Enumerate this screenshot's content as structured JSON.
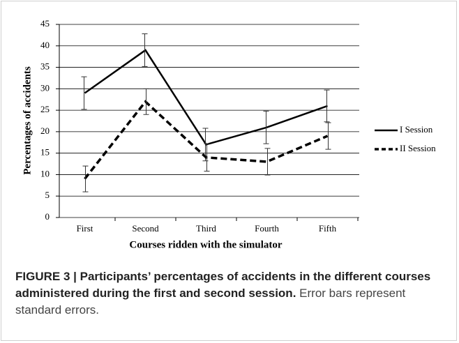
{
  "chart_data": {
    "type": "line",
    "y_label": "Percentages of accidents",
    "x_label": "Courses ridden with the simulator",
    "categories": [
      "First",
      "Second",
      "Third",
      "Fourth",
      "Fifth"
    ],
    "series": [
      {
        "name": "I Session",
        "color": "#000000",
        "dash": "solid",
        "values": [
          29,
          39,
          17,
          21,
          26
        ],
        "errors": [
          3.8,
          3.8,
          3.8,
          3.8,
          3.7
        ]
      },
      {
        "name": "II Session",
        "color": "#000000",
        "dash": "dashed",
        "values": [
          9,
          27,
          14,
          13,
          19
        ],
        "errors": [
          3,
          3,
          3.2,
          3.1,
          3.1
        ]
      }
    ],
    "ylim": [
      0,
      45
    ],
    "yticks": [
      0,
      5,
      10,
      15,
      20,
      25,
      30,
      35,
      40,
      45
    ],
    "grid": true,
    "legend": "right"
  },
  "caption": {
    "bold": "FIGURE 3 | Participants’ percentages of accidents in the different courses administered during the first and second session.",
    "text": "Error bars represent standard errors."
  }
}
